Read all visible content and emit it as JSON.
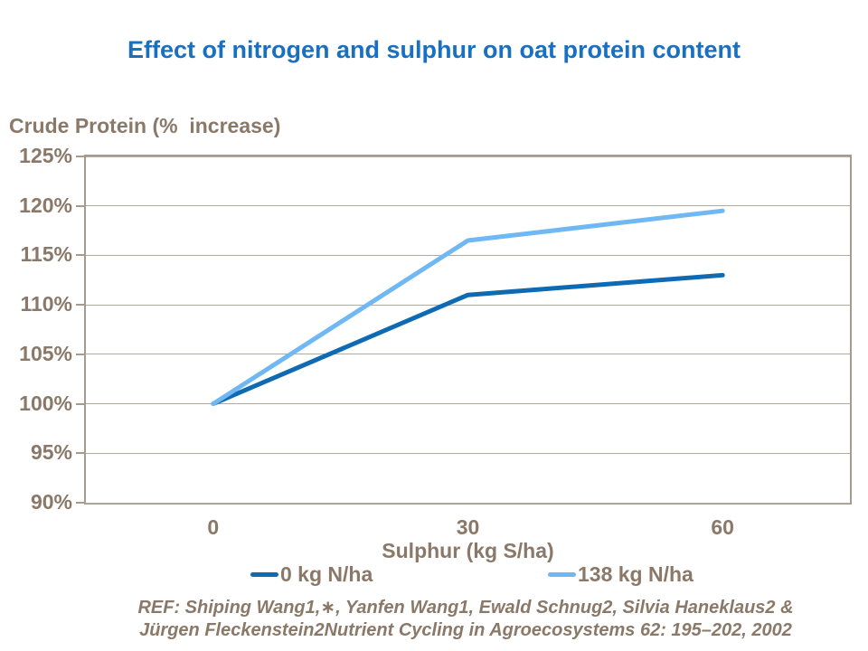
{
  "title": "Effect of nitrogen and sulphur on oat protein content",
  "colors": {
    "title_blue": "#1970C0",
    "label_brown": "#8A7968",
    "gridline": "#B3AA9E",
    "plot_border": "#A69B8D",
    "series_dark_blue": "#0F6AB4",
    "series_light_blue": "#70B8F4"
  },
  "chart_data": {
    "type": "line",
    "title": "Effect of nitrogen and sulphur on oat protein content",
    "xlabel": "Sulphur (kg S/ha)",
    "ylabel": "Crude Protein (%  increase)",
    "categories": [
      "0",
      "30",
      "60"
    ],
    "series": [
      {
        "name": "0 kg N/ha",
        "color": "#0F6AB4",
        "values": [
          100,
          111,
          113
        ]
      },
      {
        "name": "138 kg N/ha",
        "color": "#70B8F4",
        "values": [
          100,
          116.5,
          119.5
        ]
      }
    ],
    "ylim": [
      90,
      125
    ],
    "ytick_step": 5,
    "yticks": [
      "125%",
      "120%",
      "115%",
      "110%",
      "105%",
      "100%",
      "95%",
      "90%"
    ],
    "ytick_values": [
      125,
      120,
      115,
      110,
      105,
      100,
      95,
      90
    ],
    "grid": true,
    "legend_position": "bottom"
  },
  "footer": {
    "ref_line1": "REF: Shiping Wang1,∗, Yanfen Wang1, Ewald Schnug2, Silvia Haneklaus2 &",
    "ref_line2": "Jürgen Fleckenstein2Nutrient Cycling in Agroecosystems 62: 195–202, 2002"
  }
}
